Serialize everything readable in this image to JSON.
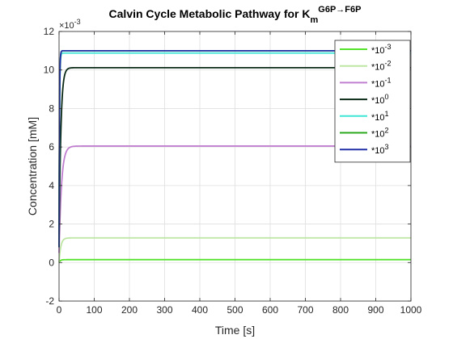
{
  "chart_data": {
    "type": "line",
    "title": {
      "prefix": "Calvin Cycle Metabolic Pathway for K",
      "superscript": "G6P→F6P",
      "subscript": "m"
    },
    "xlabel": "Time [s]",
    "ylabel": "Concentration [mM]",
    "xlim": [
      0,
      1000
    ],
    "ylim": [
      -2,
      12
    ],
    "x_ticks": [
      0,
      100,
      200,
      300,
      400,
      500,
      600,
      700,
      800,
      900,
      1000
    ],
    "y_ticks": [
      -2,
      0,
      2,
      4,
      6,
      8,
      10,
      12
    ],
    "y_multiplier": {
      "base": "×10",
      "exponent": "-3"
    },
    "grid": true,
    "legend_position": "top-right",
    "series": [
      {
        "name": "*10^-3",
        "label_base": "*10",
        "label_exp": "-3",
        "color": "#55e22a",
        "start": 0.0,
        "steady": 0.15,
        "tau": 3.5
      },
      {
        "name": "*10^-2",
        "label_base": "*10",
        "label_exp": "-2",
        "color": "#bde6a3",
        "start": 0.0,
        "steady": 1.28,
        "tau": 5.0
      },
      {
        "name": "*10^-1",
        "label_base": "*10",
        "label_exp": "-1",
        "color": "#c07fcf",
        "start": 0.5,
        "steady": 6.05,
        "tau": 7.0
      },
      {
        "name": "*10^0",
        "label_base": "*10",
        "label_exp": "0",
        "color": "#0a2a16",
        "start": 0.8,
        "steady": 10.12,
        "tau": 5.0
      },
      {
        "name": "*10^1",
        "label_base": "*10",
        "label_exp": "1",
        "color": "#3ee6d6",
        "start": 0.8,
        "steady": 10.88,
        "tau": 1.3
      },
      {
        "name": "*10^2",
        "label_base": "*10",
        "label_exp": "2",
        "color": "#2aa81c",
        "start": 0.8,
        "steady": 11.0,
        "tau": 1.2
      },
      {
        "name": "*10^3",
        "label_base": "*10",
        "label_exp": "3",
        "color": "#2230a8",
        "start": 0.8,
        "steady": 11.0,
        "tau": 1.2
      }
    ]
  }
}
